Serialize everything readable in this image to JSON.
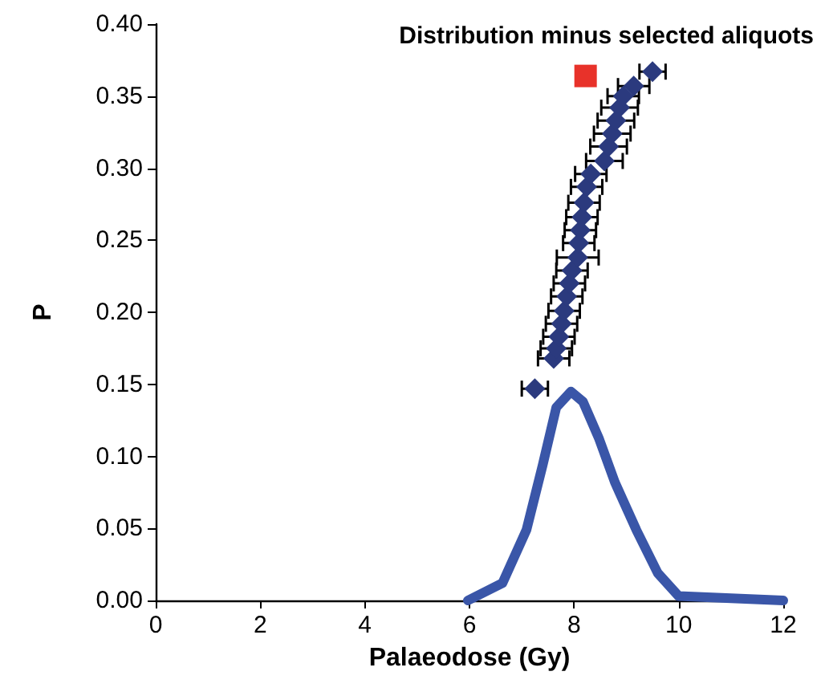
{
  "chart_data": {
    "type": "line",
    "title": "Distribution minus selected aliquots",
    "xlabel": "Palaeodose (Gy)",
    "ylabel": "P",
    "xlim": [
      0,
      12
    ],
    "xticks": [
      0,
      2,
      4,
      6,
      8,
      10,
      12
    ],
    "ylim": [
      0,
      0.4
    ],
    "yticks": [
      {
        "value": 0,
        "label": "0.00"
      },
      {
        "value": 0.05,
        "label": "0.05"
      },
      {
        "value": 0.1,
        "label": "0.10"
      },
      {
        "value": 0.15,
        "label": "0.15"
      },
      {
        "value": 0.2,
        "label": "0.20"
      },
      {
        "value": 0.25,
        "label": "0.25"
      },
      {
        "value": 0.3,
        "label": "0.30"
      },
      {
        "value": 0.35,
        "label": "0.35"
      },
      {
        "value": 0.4,
        "label": "0.40"
      }
    ],
    "grid": false,
    "series": [
      {
        "color": "#3a56a8",
        "marker": "none",
        "x": [
          5.97,
          6.63,
          7.09,
          7.4,
          7.66,
          7.94,
          8.17,
          8.48,
          8.78,
          9.19,
          9.6,
          10.0,
          12
        ],
        "values": [
          0,
          0.012,
          0.049,
          0.094,
          0.134,
          0.145,
          0.138,
          0.112,
          0.082,
          0.049,
          0.019,
          0.003,
          0
        ]
      },
      {
        "type": "scatter",
        "color": "#2b3a7e",
        "marker": "diamond",
        "x": [
          7.25,
          7.61,
          7.66,
          7.71,
          7.76,
          7.81,
          7.86,
          7.91,
          7.96,
          8.07,
          8.09,
          8.12,
          8.15,
          8.19,
          8.24,
          8.32,
          8.58,
          8.66,
          8.73,
          8.8,
          8.87,
          8.94,
          9.14,
          9.5
        ],
        "values": [
          0.147,
          0.168,
          0.175,
          0.183,
          0.192,
          0.201,
          0.211,
          0.22,
          0.229,
          0.238,
          0.248,
          0.257,
          0.266,
          0.276,
          0.287,
          0.296,
          0.305,
          0.315,
          0.324,
          0.333,
          0.342,
          0.35,
          0.357,
          0.367
        ],
        "xerrors": [
          0.25,
          0.3,
          0.3,
          0.3,
          0.3,
          0.3,
          0.3,
          0.3,
          0.3,
          0.4,
          0.3,
          0.3,
          0.3,
          0.3,
          0.3,
          0.3,
          0.35,
          0.35,
          0.35,
          0.35,
          0.35,
          0.3,
          0.3,
          0.25
        ]
      },
      {
        "type": "scatter",
        "color": "#e8322a",
        "marker": "square",
        "x": [
          8.22
        ],
        "values": [
          0.364
        ]
      }
    ]
  }
}
